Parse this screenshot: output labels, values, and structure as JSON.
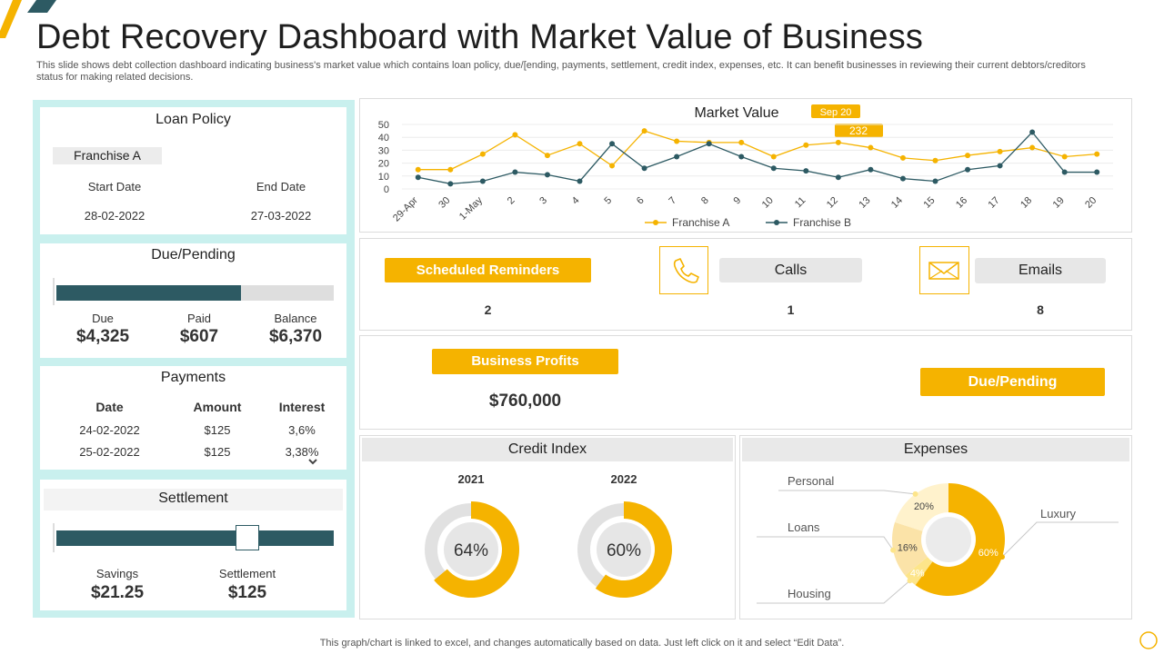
{
  "title": "Debt Recovery Dashboard with Market Value of Business",
  "subtitle": "This slide shows debt collection dashboard indicating business's market value which contains loan policy, due/[ending, payments, settlement, credit index, expenses, etc. It can benefit businesses in reviewing their current debtors/creditors status for making related decisions.",
  "loan_policy": {
    "title": "Loan Policy",
    "franchise": "Franchise A",
    "start_label": "Start Date",
    "end_label": "End Date",
    "start_value": "28-02-2022",
    "end_value": "27-03-2022"
  },
  "due_pending": {
    "title": "Due/Pending",
    "progress": 0.667,
    "due_label": "Due",
    "due_value": "$4,325",
    "paid_label": "Paid",
    "paid_value": "$607",
    "balance_label": "Balance",
    "balance_value": "$6,370"
  },
  "payments": {
    "title": "Payments",
    "headers": [
      "Date",
      "Amount",
      "Interest"
    ],
    "rows": [
      [
        "24-02-2022",
        "$125",
        "3,6%"
      ],
      [
        "25-02-2022",
        "$125",
        "3,38%"
      ]
    ]
  },
  "settlement": {
    "title": "Settlement",
    "slider_position": 0.69,
    "savings_label": "Savings",
    "savings_value": "$21.25",
    "settlement_label": "Settlement",
    "settlement_value": "$125"
  },
  "reminders": {
    "scheduled_label": "Scheduled Reminders",
    "scheduled_value": "2",
    "calls_label": "Calls",
    "calls_value": "1",
    "emails_label": "Emails",
    "emails_value": "8"
  },
  "profits": {
    "label": "Business  Profits",
    "value": "$760,000",
    "due_pending_label": "Due/Pending"
  },
  "credit_index": {
    "title": "Credit Index",
    "years": [
      "2021",
      "2022"
    ]
  },
  "expenses": {
    "title": "Expenses"
  },
  "colors": {
    "accent": "#f5b300",
    "dark_teal": "#2d5a63",
    "panel_bg": "#c9f0ee"
  },
  "footer": "This graph/chart is linked to excel,  and changes automatically based on data. Just left click on it and select “Edit Data”.",
  "chart_data": [
    {
      "type": "line",
      "title": "Market Value",
      "categories": [
        "29-Apr",
        "30",
        "1-May",
        "2",
        "3",
        "4",
        "5",
        "6",
        "7",
        "8",
        "9",
        "10",
        "11",
        "12",
        "13",
        "14",
        "15",
        "16",
        "17",
        "18",
        "19",
        "20"
      ],
      "series": [
        {
          "name": "Franchise A",
          "color": "#f5b300",
          "values": [
            15,
            15,
            27,
            42,
            26,
            35,
            18,
            45,
            37,
            36,
            36,
            25,
            34,
            36,
            32,
            24,
            22,
            26,
            29,
            32,
            25,
            27
          ]
        },
        {
          "name": "Franchise B",
          "color": "#2d5a63",
          "values": [
            9,
            4,
            6,
            13,
            11,
            6,
            35,
            16,
            25,
            35,
            25,
            16,
            14,
            9,
            15,
            8,
            6,
            15,
            18,
            44,
            13,
            13
          ]
        }
      ],
      "ylim": [
        0,
        50
      ],
      "yticks": [
        0,
        10,
        20,
        30,
        40,
        50
      ],
      "annotations": [
        {
          "text": "Sep 20",
          "category": "12"
        },
        {
          "text": "232",
          "category": "12"
        }
      ],
      "legend": "bottom-center"
    },
    {
      "type": "pie",
      "title": "Credit Index",
      "charts": [
        {
          "label": "2021",
          "value": 64,
          "display": "64%"
        },
        {
          "label": "2022",
          "value": 60,
          "display": "60%"
        }
      ]
    },
    {
      "type": "pie",
      "title": "Expenses",
      "slices": [
        {
          "label": "Luxury",
          "value": 60,
          "display": "60%",
          "color": "#f5b300"
        },
        {
          "label": "Housing",
          "value": 4,
          "display": "4%",
          "color": "#fde58a"
        },
        {
          "label": "Loans",
          "value": 16,
          "display": "16%",
          "color": "#fbe3a8"
        },
        {
          "label": "Personal",
          "value": 20,
          "display": "20%",
          "color": "#fff2cc"
        }
      ]
    }
  ]
}
